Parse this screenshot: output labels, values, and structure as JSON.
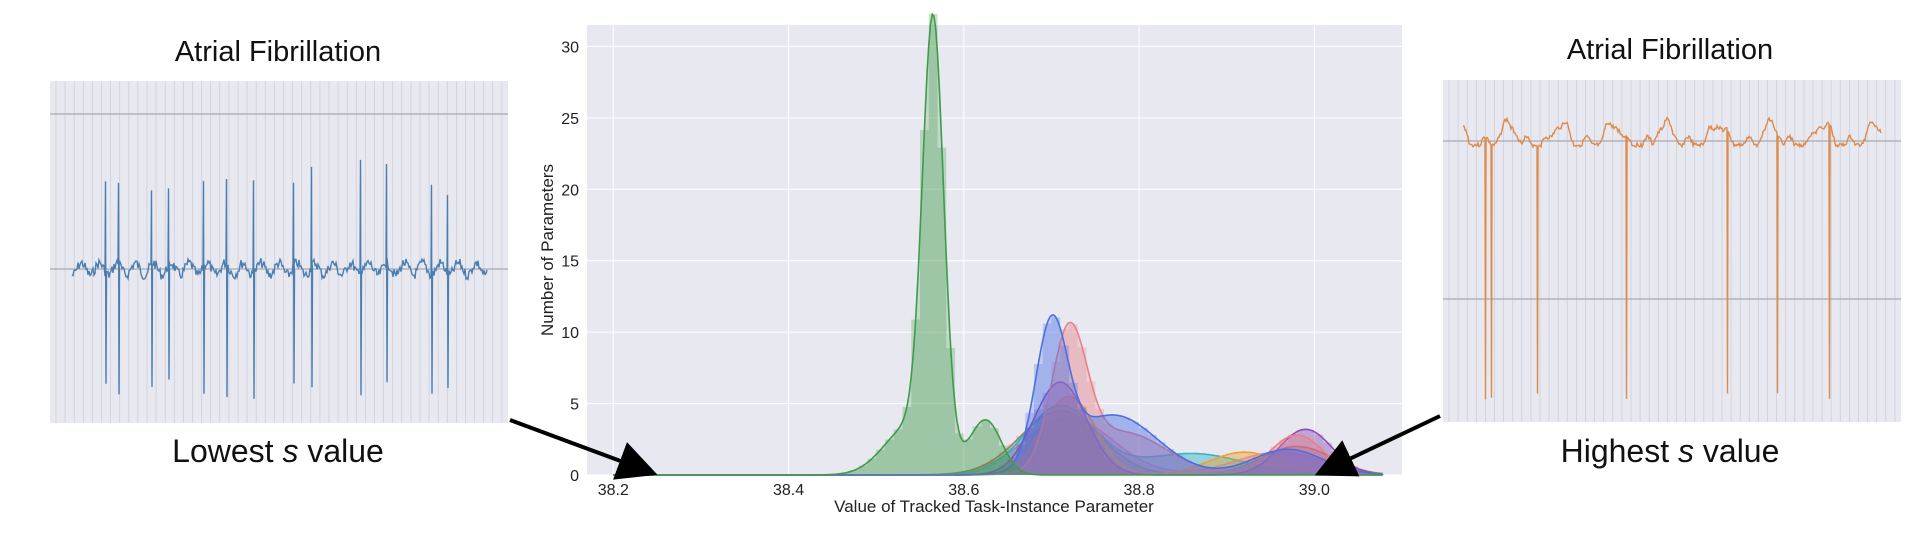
{
  "left_panel": {
    "title": "Atrial Fibrillation",
    "caption_prefix": "Lowest ",
    "caption_var": "s",
    "caption_suffix": " value",
    "trace_color": "#4a7eb0"
  },
  "right_panel": {
    "title": "Atrial Fibrillation",
    "caption_prefix": "Highest ",
    "caption_var": "s",
    "caption_suffix": " value",
    "trace_color": "#dd8a4a"
  },
  "chart_data": {
    "type": "area",
    "title": "",
    "xlabel": "Value of Tracked Task-Instance Parameter",
    "ylabel": "Number of Parameters",
    "xlim": [
      38.17,
      39.1
    ],
    "ylim": [
      0,
      31.5
    ],
    "xticks": [
      38.2,
      38.4,
      38.6,
      38.8,
      39.0
    ],
    "xtick_labels": [
      "38.2",
      "38.4",
      "38.6",
      "38.8",
      "39.0"
    ],
    "yticks": [
      0,
      5,
      10,
      15,
      20,
      25,
      30
    ],
    "ytick_labels": [
      "0",
      "5",
      "10",
      "15",
      "20",
      "25",
      "30"
    ],
    "grid": true,
    "background": "#e8e8f0",
    "series": [
      {
        "color": "#3e9c47",
        "peaks": [
          [
            38.565,
            29.8,
            0.012
          ],
          [
            38.54,
            3.5,
            0.03
          ],
          [
            38.625,
            3.8,
            0.018
          ]
        ]
      },
      {
        "color": "#4a6fe3",
        "peaks": [
          [
            38.7,
            9.6,
            0.018
          ],
          [
            38.77,
            4.2,
            0.05
          ],
          [
            38.97,
            1.8,
            0.04
          ]
        ]
      },
      {
        "color": "#e8808a",
        "peaks": [
          [
            38.72,
            9.2,
            0.02
          ],
          [
            38.78,
            3.0,
            0.05
          ],
          [
            38.98,
            2.8,
            0.03
          ]
        ]
      },
      {
        "color": "#8b4fb8",
        "peaks": [
          [
            38.71,
            6.5,
            0.03
          ],
          [
            38.99,
            3.2,
            0.03
          ]
        ]
      },
      {
        "color": "#f0a030",
        "peaks": [
          [
            38.72,
            5.5,
            0.03
          ],
          [
            38.92,
            1.6,
            0.04
          ]
        ]
      },
      {
        "color": "#33b5c8",
        "peaks": [
          [
            38.71,
            4.8,
            0.04
          ],
          [
            38.86,
            1.5,
            0.06
          ]
        ]
      },
      {
        "color": "#a87a5a",
        "peaks": [
          [
            38.71,
            4.5,
            0.045
          ],
          [
            38.98,
            2.0,
            0.04
          ]
        ]
      },
      {
        "color": "#e080c8",
        "peaks": [
          [
            38.72,
            4.0,
            0.05
          ],
          [
            38.96,
            1.6,
            0.05
          ]
        ]
      }
    ]
  }
}
